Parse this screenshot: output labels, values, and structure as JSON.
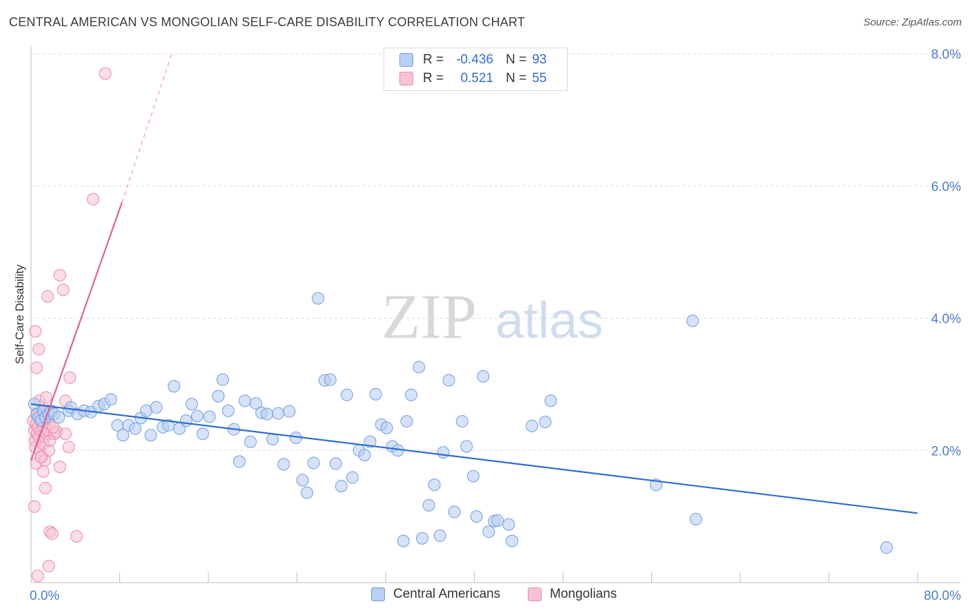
{
  "title": "CENTRAL AMERICAN VS MONGOLIAN SELF-CARE DISABILITY CORRELATION CHART",
  "source": "Source: ZipAtlas.com",
  "watermark": {
    "zip": "ZIP",
    "atlas": "atlas"
  },
  "colors": {
    "blue_fill": "#b9cff3",
    "blue_stroke": "#6f9de0",
    "blue_line": "#2f6bd1",
    "pink_fill": "#f7c3d3",
    "pink_stroke": "#ea86a7",
    "pink_line": "#e2608f",
    "grid": "#dcdcdc",
    "axis_text": "#4d7cc7"
  },
  "legend": {
    "rows": [
      {
        "r_label": "R =",
        "r_value": "-0.436",
        "n_label": "N =",
        "n_value": "93"
      },
      {
        "r_label": "R =",
        "r_value": "0.521",
        "n_label": "N =",
        "n_value": "55"
      }
    ]
  },
  "chart_data": {
    "type": "scatter",
    "title": "CENTRAL AMERICAN VS MONGOLIAN SELF-CARE DISABILITY CORRELATION CHART",
    "xlabel": "",
    "ylabel": "Self-Care Disability",
    "xlim": [
      0,
      80
    ],
    "ylim": [
      0,
      8
    ],
    "x_tick_labels": {
      "min": "0.0%",
      "max": "80.0%"
    },
    "y_ticks": [
      2,
      4,
      6,
      8
    ],
    "y_tick_labels": [
      "2.0%",
      "4.0%",
      "6.0%",
      "8.0%"
    ],
    "series": [
      {
        "name": "Central Americans",
        "r": -0.436,
        "n": 93,
        "trend": {
          "x0": 0,
          "y0": 2.7,
          "x1": 80,
          "y1": 1.05
        },
        "points": [
          [
            0.3,
            2.7
          ],
          [
            0.5,
            2.55
          ],
          [
            0.7,
            2.5
          ],
          [
            0.9,
            2.45
          ],
          [
            1.1,
            2.6
          ],
          [
            1.3,
            2.5
          ],
          [
            1.6,
            2.55
          ],
          [
            1.8,
            2.6
          ],
          [
            2.1,
            2.55
          ],
          [
            2.5,
            2.5
          ],
          [
            3.4,
            2.6
          ],
          [
            3.6,
            2.65
          ],
          [
            4.2,
            2.55
          ],
          [
            4.8,
            2.6
          ],
          [
            5.4,
            2.58
          ],
          [
            6.1,
            2.67
          ],
          [
            6.6,
            2.7
          ],
          [
            7.2,
            2.77
          ],
          [
            7.8,
            2.38
          ],
          [
            8.3,
            2.23
          ],
          [
            8.8,
            2.38
          ],
          [
            9.4,
            2.33
          ],
          [
            9.9,
            2.49
          ],
          [
            10.4,
            2.6
          ],
          [
            10.8,
            2.23
          ],
          [
            11.3,
            2.65
          ],
          [
            11.9,
            2.35
          ],
          [
            12.4,
            2.38
          ],
          [
            12.9,
            2.97
          ],
          [
            13.4,
            2.33
          ],
          [
            14.0,
            2.45
          ],
          [
            14.5,
            2.7
          ],
          [
            15.0,
            2.52
          ],
          [
            15.5,
            2.25
          ],
          [
            16.1,
            2.51
          ],
          [
            16.9,
            2.82
          ],
          [
            17.3,
            3.07
          ],
          [
            17.8,
            2.6
          ],
          [
            18.3,
            2.32
          ],
          [
            18.8,
            1.83
          ],
          [
            19.3,
            2.75
          ],
          [
            19.8,
            2.13
          ],
          [
            20.3,
            2.71
          ],
          [
            20.8,
            2.57
          ],
          [
            21.3,
            2.55
          ],
          [
            21.8,
            2.17
          ],
          [
            22.3,
            2.56
          ],
          [
            22.8,
            1.79
          ],
          [
            23.3,
            2.59
          ],
          [
            23.9,
            2.19
          ],
          [
            24.5,
            1.55
          ],
          [
            24.9,
            1.36
          ],
          [
            25.5,
            1.81
          ],
          [
            25.9,
            4.3
          ],
          [
            26.5,
            3.06
          ],
          [
            27.0,
            3.07
          ],
          [
            27.5,
            1.8
          ],
          [
            28.0,
            1.46
          ],
          [
            28.5,
            2.84
          ],
          [
            29.0,
            1.59
          ],
          [
            29.6,
            2.0
          ],
          [
            30.1,
            1.93
          ],
          [
            30.6,
            2.13
          ],
          [
            31.1,
            2.85
          ],
          [
            31.6,
            2.39
          ],
          [
            32.1,
            2.34
          ],
          [
            32.6,
            2.06
          ],
          [
            33.1,
            2.0
          ],
          [
            33.6,
            0.63
          ],
          [
            33.9,
            2.44
          ],
          [
            34.3,
            2.84
          ],
          [
            35.0,
            3.26
          ],
          [
            35.3,
            0.67
          ],
          [
            35.9,
            1.17
          ],
          [
            36.4,
            1.48
          ],
          [
            36.9,
            0.71
          ],
          [
            37.2,
            1.97
          ],
          [
            37.7,
            3.06
          ],
          [
            38.2,
            1.07
          ],
          [
            38.9,
            2.44
          ],
          [
            39.3,
            2.06
          ],
          [
            39.9,
            1.61
          ],
          [
            40.2,
            1.0
          ],
          [
            40.8,
            3.12
          ],
          [
            41.3,
            0.77
          ],
          [
            41.8,
            0.93
          ],
          [
            42.1,
            0.94
          ],
          [
            43.1,
            0.88
          ],
          [
            43.4,
            0.63
          ],
          [
            45.2,
            2.37
          ],
          [
            46.4,
            2.43
          ],
          [
            46.9,
            2.75
          ],
          [
            56.4,
            1.48
          ],
          [
            59.7,
            3.96
          ],
          [
            60.0,
            0.96
          ],
          [
            77.2,
            0.53
          ]
        ]
      },
      {
        "name": "Mongolians",
        "r": 0.521,
        "n": 55,
        "trend": {
          "x0": 0,
          "y0": 1.85,
          "x1": 8.2,
          "y1": 5.75,
          "dash_x1": 12.7,
          "dash_y1": 8.0
        },
        "points": [
          [
            0.2,
            2.45
          ],
          [
            0.3,
            2.3
          ],
          [
            0.35,
            2.15
          ],
          [
            0.4,
            2.05
          ],
          [
            0.45,
            2.4
          ],
          [
            0.5,
            1.8
          ],
          [
            0.55,
            2.25
          ],
          [
            0.6,
            2.55
          ],
          [
            0.65,
            2.35
          ],
          [
            0.7,
            2.2
          ],
          [
            0.75,
            2.75
          ],
          [
            0.8,
            2.0
          ],
          [
            0.85,
            2.5
          ],
          [
            0.9,
            2.3
          ],
          [
            0.95,
            1.9
          ],
          [
            1.0,
            2.45
          ],
          [
            1.05,
            2.6
          ],
          [
            1.1,
            2.1
          ],
          [
            1.15,
            2.35
          ],
          [
            1.2,
            2.2
          ],
          [
            1.25,
            1.85
          ],
          [
            1.3,
            2.55
          ],
          [
            1.35,
            2.8
          ],
          [
            1.4,
            2.25
          ],
          [
            1.45,
            2.45
          ],
          [
            1.5,
            2.6
          ],
          [
            1.55,
            2.3
          ],
          [
            1.6,
            2.0
          ],
          [
            1.65,
            2.4
          ],
          [
            1.7,
            2.15
          ],
          [
            0.3,
            1.15
          ],
          [
            0.4,
            3.8
          ],
          [
            0.5,
            3.25
          ],
          [
            0.7,
            3.53
          ],
          [
            0.9,
            1.9
          ],
          [
            1.1,
            1.68
          ],
          [
            1.3,
            1.43
          ],
          [
            1.5,
            4.33
          ],
          [
            1.7,
            0.77
          ],
          [
            1.9,
            0.74
          ],
          [
            1.6,
            0.25
          ],
          [
            0.6,
            0.1
          ],
          [
            2.1,
            2.25
          ],
          [
            2.3,
            2.28
          ],
          [
            2.6,
            1.75
          ],
          [
            2.6,
            4.65
          ],
          [
            2.9,
            4.43
          ],
          [
            3.1,
            2.25
          ],
          [
            3.4,
            2.05
          ],
          [
            3.1,
            2.75
          ],
          [
            3.5,
            3.1
          ],
          [
            4.1,
            0.7
          ],
          [
            5.6,
            5.8
          ],
          [
            6.7,
            7.7
          ],
          [
            2.0,
            2.35
          ]
        ]
      }
    ]
  }
}
